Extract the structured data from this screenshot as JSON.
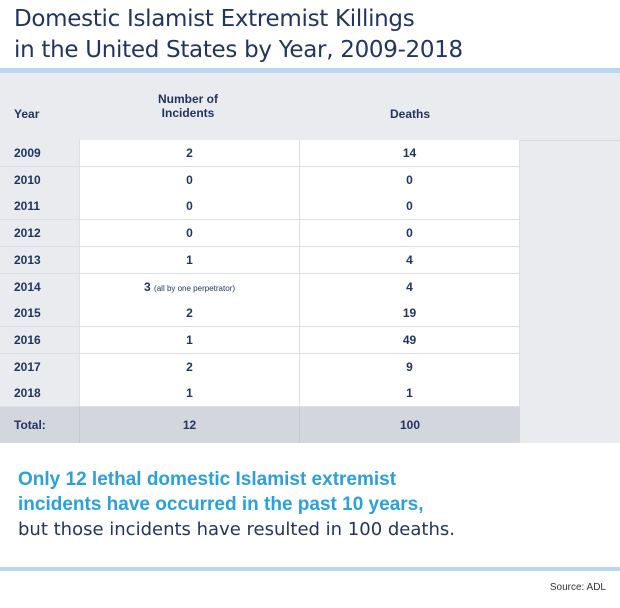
{
  "title_line1": "Domestic Islamist Extremist Killings",
  "title_line2": "in the United States by Year, 2009-2018",
  "chart_data": {
    "type": "table",
    "columns": [
      "Year",
      "Number of Incidents",
      "Deaths"
    ],
    "column_header_incidents_line1": "Number of",
    "column_header_incidents_line2": "Incidents",
    "rows": [
      {
        "year": "2009",
        "incidents": "2",
        "note": "",
        "deaths": "14"
      },
      {
        "year": "2010",
        "incidents": "0",
        "note": "",
        "deaths": "0"
      },
      {
        "year": "2011",
        "incidents": "0",
        "note": "",
        "deaths": "0"
      },
      {
        "year": "2012",
        "incidents": "0",
        "note": "",
        "deaths": "0"
      },
      {
        "year": "2013",
        "incidents": "1",
        "note": "",
        "deaths": "4"
      },
      {
        "year": "2014",
        "incidents": "3",
        "note": "(all by one perpetrator)",
        "deaths": "4"
      },
      {
        "year": "2015",
        "incidents": "2",
        "note": "",
        "deaths": "19"
      },
      {
        "year": "2016",
        "incidents": "1",
        "note": "",
        "deaths": "49"
      },
      {
        "year": "2017",
        "incidents": "2",
        "note": "",
        "deaths": "9"
      },
      {
        "year": "2018",
        "incidents": "1",
        "note": "",
        "deaths": "1"
      }
    ],
    "total": {
      "label": "Total:",
      "incidents": "12",
      "deaths": "100"
    }
  },
  "summary": {
    "highlight_line1": "Only 12 lethal domestic Islamist extremist",
    "highlight_line2": "incidents have occurred in the past 10 years,",
    "rest": "but those incidents have resulted in 100 deaths."
  },
  "source": "Source: ADL"
}
